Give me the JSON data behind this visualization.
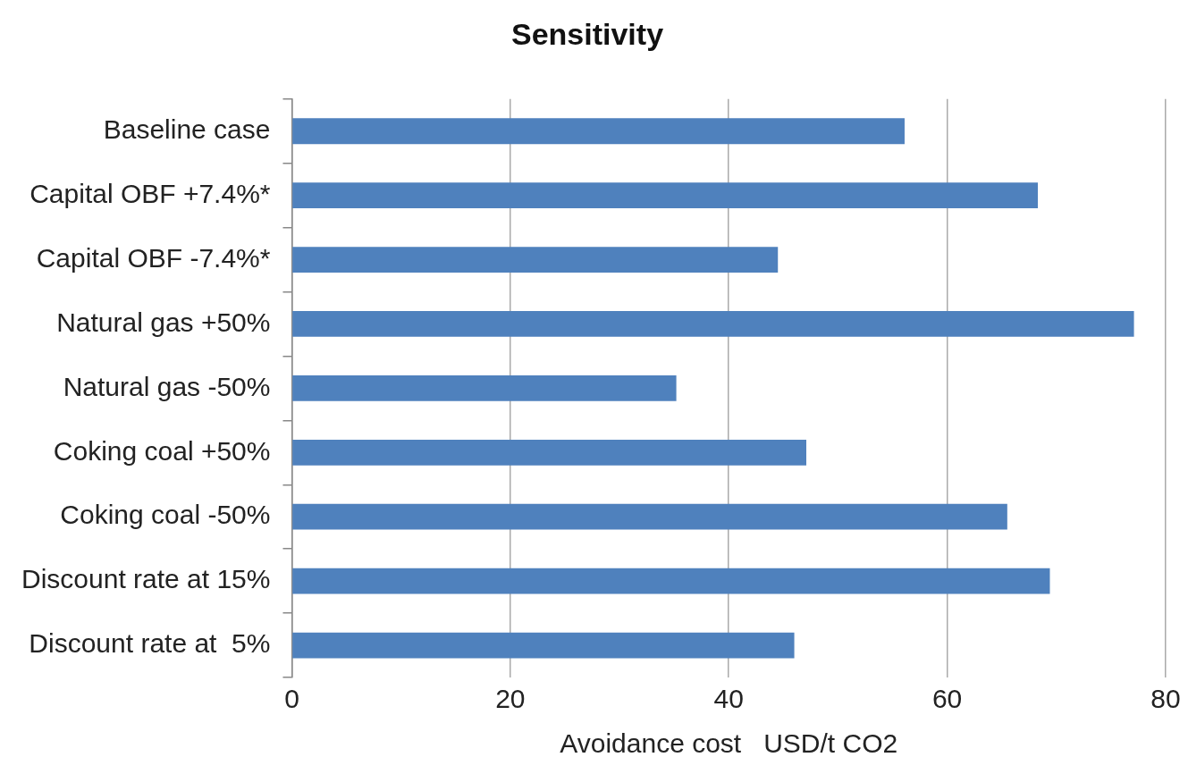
{
  "chart_data": {
    "type": "bar",
    "orientation": "horizontal",
    "title": "Sensitivity",
    "xlabel": "Avoidance cost   USD/t CO2",
    "categories": [
      "Baseline case",
      "Capital OBF +7.4%*",
      "Capital OBF -7.4%*",
      "Natural gas +50%",
      "Natural gas -50%",
      "Coking coal +50%",
      "Coking coal -50%",
      "Discount rate at 15%",
      "Discount rate at  5%"
    ],
    "values": [
      56.1,
      68.3,
      44.5,
      77.1,
      35.2,
      47.1,
      65.5,
      69.4,
      46.0
    ],
    "color": "#4f81bd",
    "xlim": [
      0,
      80
    ],
    "xticks": [
      0,
      20,
      40,
      60,
      80
    ],
    "grid": "x",
    "legend": false
  }
}
